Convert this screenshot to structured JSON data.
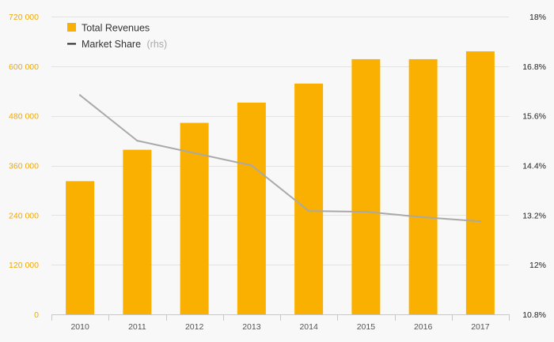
{
  "chart_data": {
    "type": "bar",
    "categories": [
      "2010",
      "2011",
      "2012",
      "2013",
      "2014",
      "2015",
      "2016",
      "2017"
    ],
    "series": [
      {
        "name": "Total Revenues",
        "kind": "bar",
        "axis": "left",
        "color": "#f9b000",
        "values": [
          322000,
          398000,
          463000,
          512000,
          558000,
          617000,
          617000,
          636000
        ]
      },
      {
        "name": "Market Share",
        "name_suffix": "(rhs)",
        "kind": "line",
        "axis": "right",
        "color": "#a9a9a9",
        "values": [
          16.1,
          15.0,
          14.7,
          14.4,
          13.3,
          13.28,
          13.15,
          13.05
        ]
      }
    ],
    "left_axis": {
      "ylim": [
        0,
        720000
      ],
      "ticks": [
        0,
        120000,
        240000,
        360000,
        480000,
        600000,
        720000
      ],
      "tick_labels": [
        "0",
        "120 000",
        "240 000",
        "360 000",
        "480 000",
        "600 000",
        "720 000"
      ],
      "color": "#f0a800"
    },
    "right_axis": {
      "ylim": [
        10.8,
        18
      ],
      "ticks": [
        10.8,
        12,
        13.2,
        14.4,
        15.6,
        16.8,
        18
      ],
      "tick_labels": [
        "10.8%",
        "12%",
        "13.2%",
        "14.4%",
        "15.6%",
        "16.8%",
        "18%"
      ],
      "color": "#222222"
    },
    "legend": {
      "placement": "top-left",
      "items": [
        {
          "label": "Total Revenues",
          "suffix": "",
          "marker": "square",
          "color": "#f9b000"
        },
        {
          "label": "Market Share",
          "suffix": "(rhs)",
          "marker": "line",
          "color": "#222222"
        }
      ]
    },
    "grid": true,
    "title": "",
    "xlabel": "",
    "ylabel": ""
  }
}
